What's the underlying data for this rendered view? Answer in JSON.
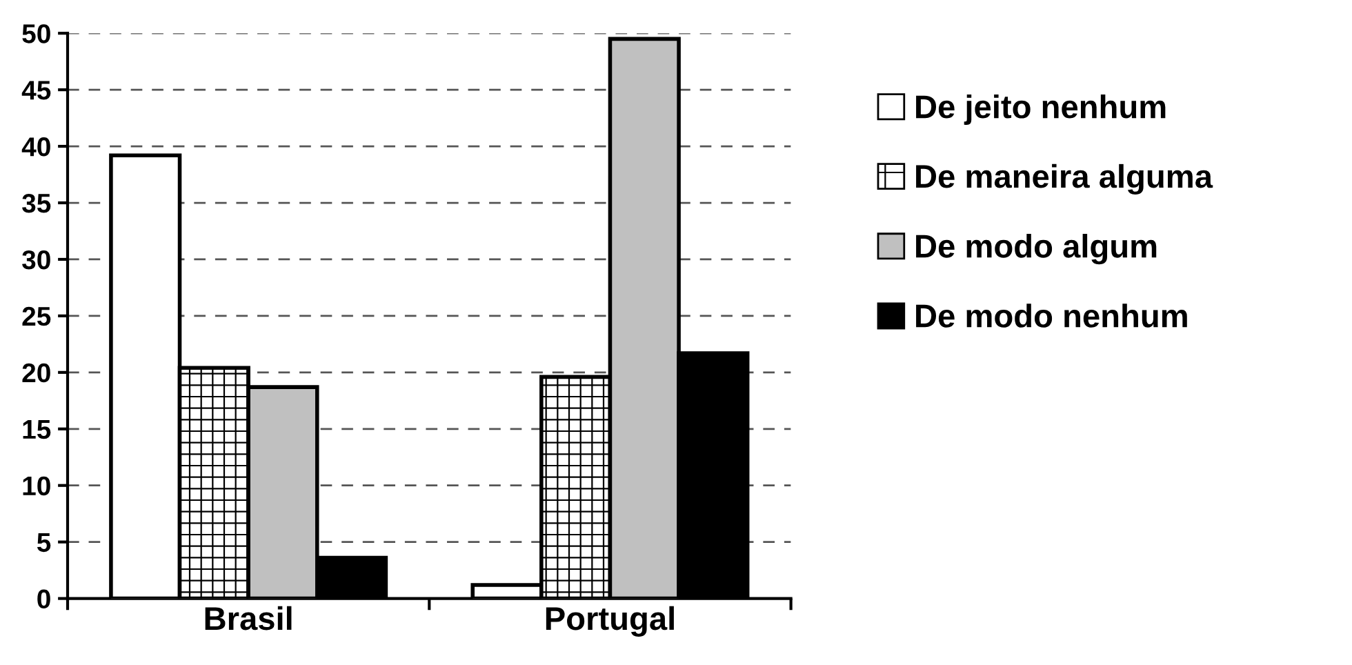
{
  "chart_data": {
    "type": "bar",
    "categories": [
      "Brasil",
      "Portugal"
    ],
    "series": [
      {
        "name": "De jeito nenhum",
        "color": "#ffffff",
        "values": [
          39.2,
          1.2
        ]
      },
      {
        "name": "De maneira alguma",
        "color": "#ffffff",
        "values": [
          20.4,
          19.6
        ]
      },
      {
        "name": "De modo algum",
        "color": "#c0c0c0",
        "values": [
          18.7,
          49.5
        ]
      },
      {
        "name": "De modo nenhum",
        "color": "#000000",
        "values": [
          3.6,
          21.7
        ]
      }
    ],
    "ylim": [
      0,
      50
    ],
    "yticks": [
      0,
      5,
      10,
      15,
      20,
      25,
      30,
      35,
      40,
      45,
      50
    ],
    "grid": "y",
    "legend": "right"
  }
}
